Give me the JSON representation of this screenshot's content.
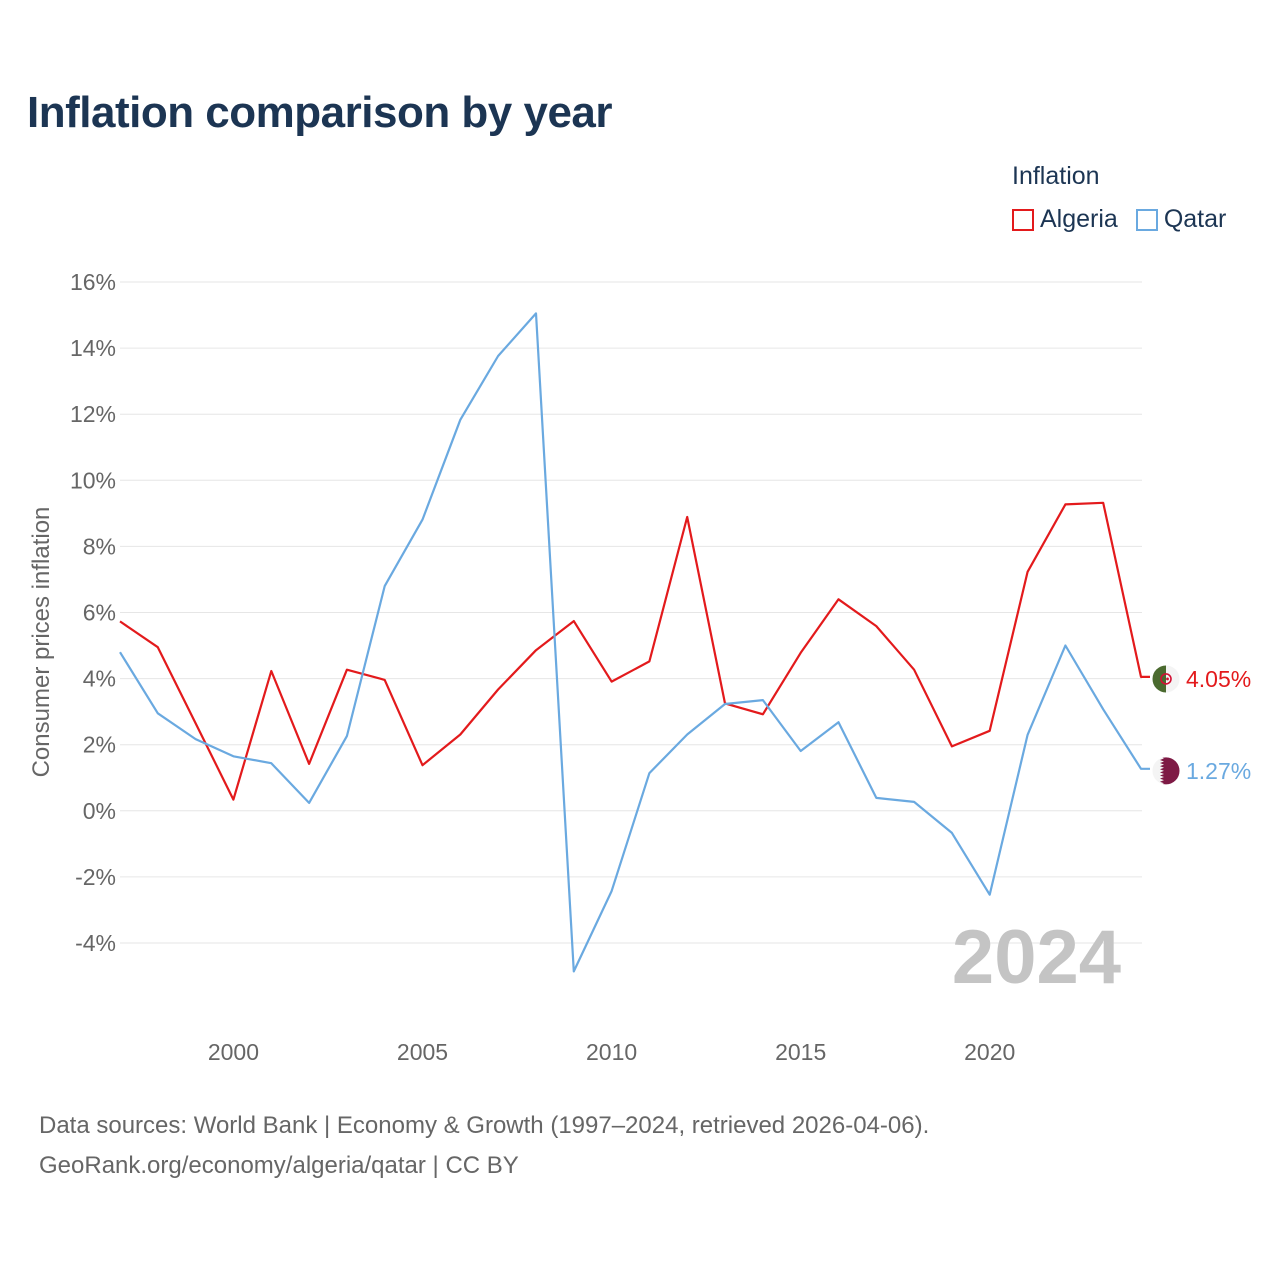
{
  "chart_data": {
    "type": "line",
    "title": "Inflation comparison by year",
    "ylabel": "Consumer prices inflation",
    "xlabel": "",
    "legend_title": "Inflation",
    "x": [
      1997,
      1998,
      1999,
      2000,
      2001,
      2002,
      2003,
      2004,
      2005,
      2006,
      2007,
      2008,
      2009,
      2010,
      2011,
      2012,
      2013,
      2014,
      2015,
      2016,
      2017,
      2018,
      2019,
      2020,
      2021,
      2022,
      2023,
      2024
    ],
    "series": [
      {
        "name": "Algeria",
        "color": "#e31a1c",
        "values": [
          5.73,
          4.95,
          2.65,
          0.34,
          4.23,
          1.42,
          4.27,
          3.96,
          1.38,
          2.31,
          3.67,
          4.86,
          5.74,
          3.91,
          4.52,
          8.89,
          3.25,
          2.92,
          4.78,
          6.4,
          5.59,
          4.27,
          1.95,
          2.42,
          7.23,
          9.27,
          9.32,
          4.05
        ],
        "end_label": "4.05%",
        "flag": "algeria-flag"
      },
      {
        "name": "Qatar",
        "color": "#6aa9e0",
        "values": [
          4.8,
          2.95,
          2.17,
          1.65,
          1.44,
          0.24,
          2.26,
          6.8,
          8.81,
          11.83,
          13.76,
          15.05,
          -4.86,
          -2.43,
          1.14,
          2.31,
          3.23,
          3.35,
          1.81,
          2.68,
          0.39,
          0.27,
          -0.67,
          -2.54,
          2.3,
          5.0,
          3.07,
          1.27
        ],
        "end_label": "1.27%",
        "flag": "qatar-flag"
      }
    ],
    "ylim": [
      -6,
      16
    ],
    "yticks": [
      16,
      14,
      12,
      10,
      8,
      6,
      4,
      2,
      0,
      -2,
      -4
    ],
    "ytick_labels": [
      "16%",
      "14%",
      "12%",
      "10%",
      "8%",
      "6%",
      "4%",
      "2%",
      "0%",
      "-2%",
      "-4%"
    ],
    "xlim": [
      1997,
      2024
    ],
    "xticks": [
      2000,
      2005,
      2010,
      2015,
      2020
    ],
    "xtick_labels": [
      "2000",
      "2005",
      "2010",
      "2015",
      "2020"
    ],
    "year_watermark": "2024",
    "grid": true,
    "legend_position": "top-right"
  },
  "footer": {
    "line1": "Data sources: World Bank | Economy & Growth (1997–2024, retrieved 2026-04-06).",
    "line2": "GeoRank.org/economy/algeria/qatar | CC BY"
  }
}
